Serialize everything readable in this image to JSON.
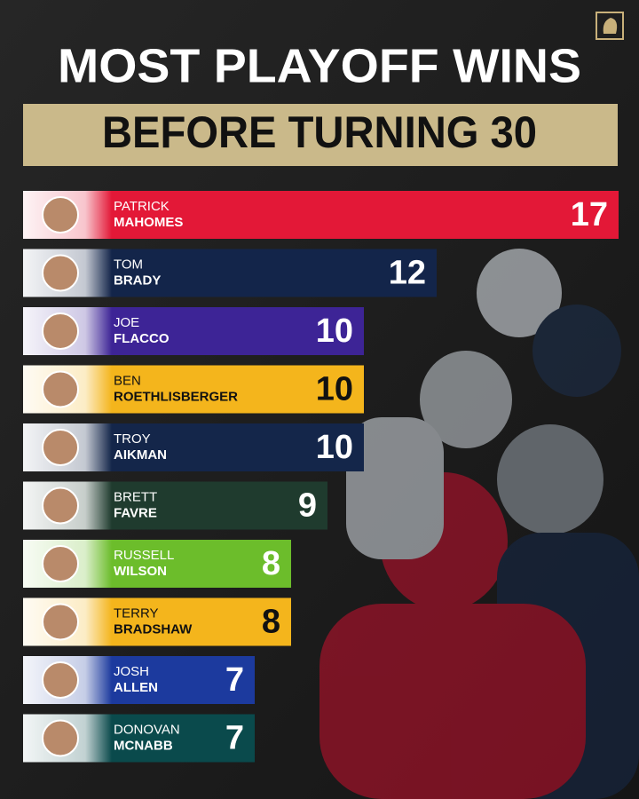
{
  "chart_data": {
    "type": "bar",
    "orientation": "horizontal",
    "title": "MOST PLAYOFF WINS",
    "subtitle": "BEFORE TURNING 30",
    "categories": [
      [
        "PATRICK",
        "MAHOMES"
      ],
      [
        "TOM",
        "BRADY"
      ],
      [
        "JOE",
        "FLACCO"
      ],
      [
        "BEN",
        "ROETHLISBERGER"
      ],
      [
        "TROY",
        "AIKMAN"
      ],
      [
        "BRETT",
        "FAVRE"
      ],
      [
        "RUSSELL",
        "WILSON"
      ],
      [
        "TERRY",
        "BRADSHAW"
      ],
      [
        "JOSH",
        "ALLEN"
      ],
      [
        "DONOVAN",
        "MCNABB"
      ]
    ],
    "values": [
      17,
      12,
      10,
      10,
      10,
      9,
      8,
      8,
      7,
      7
    ],
    "colors": [
      "#e31837",
      "#13254a",
      "#3d2496",
      "#f4b51c",
      "#14264a",
      "#1f3b2e",
      "#6cbd2b",
      "#f4b51c",
      "#1c3a9e",
      "#0a4a4c"
    ]
  }
}
